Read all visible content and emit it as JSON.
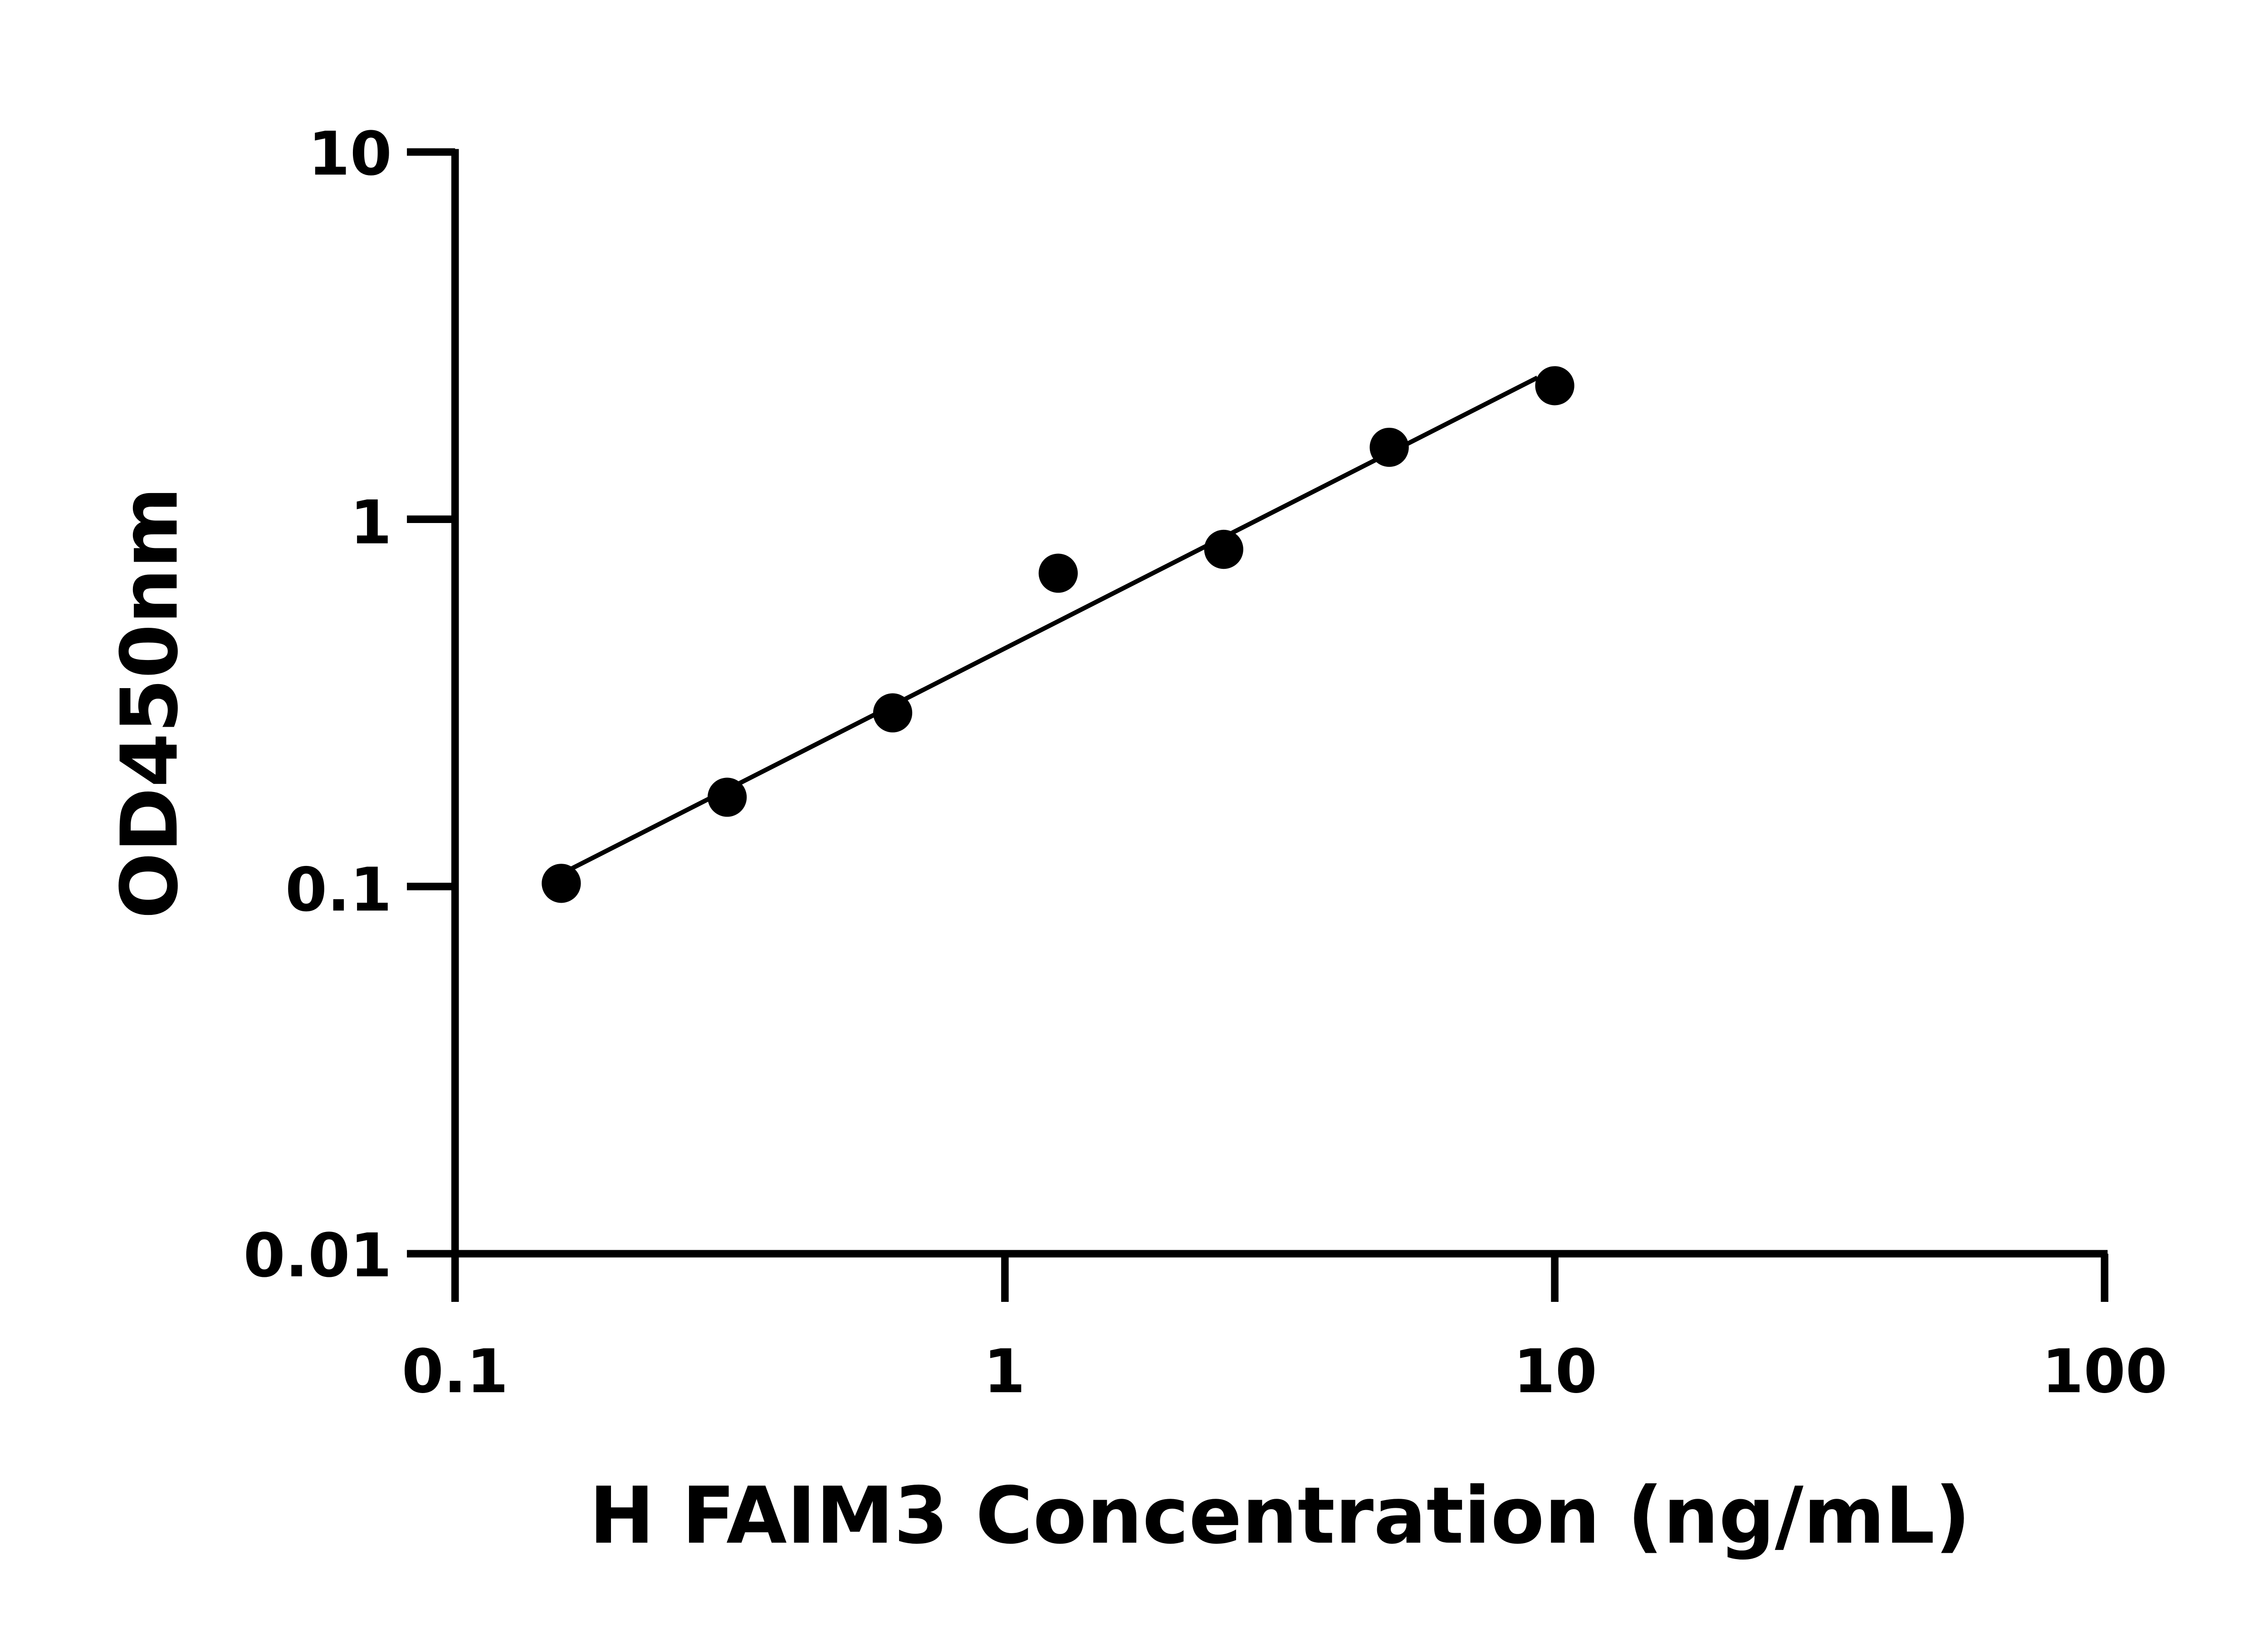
{
  "chart_data": {
    "type": "scatter",
    "title": "",
    "xlabel": "H FAIM3 Concentration (ng/mL)",
    "ylabel": "OD450nm",
    "xscale": "log",
    "yscale": "log",
    "xlim": [
      0.1,
      100
    ],
    "ylim": [
      0.01,
      10
    ],
    "xticks": [
      "0.1",
      "1",
      "10",
      "100"
    ],
    "yticks": [
      "0.01",
      "0.1",
      "1",
      "10"
    ],
    "grid": false,
    "legend": "none",
    "fit_line": "log-log linear",
    "color": "#000000",
    "x": [
      0.156,
      0.3125,
      0.625,
      1.25,
      2.5,
      5,
      10
    ],
    "y": [
      0.102,
      0.175,
      0.297,
      0.713,
      0.828,
      1.57,
      2.31
    ]
  }
}
